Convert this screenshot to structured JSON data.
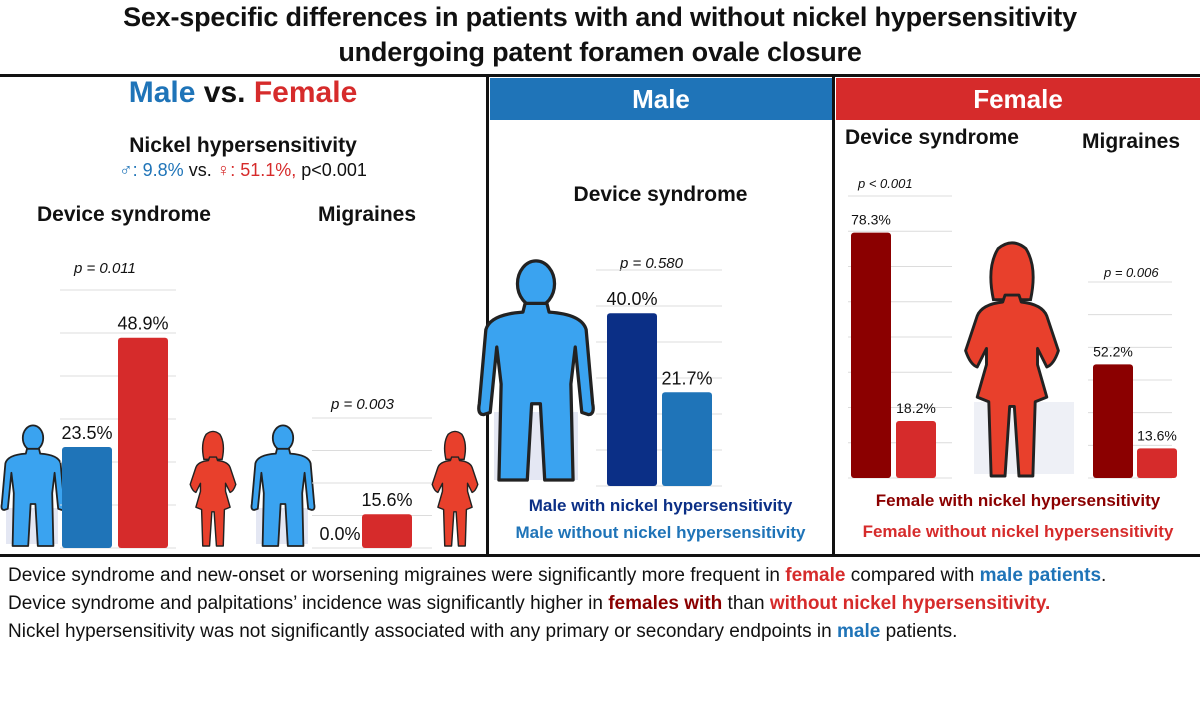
{
  "title": {
    "line1": "Sex-specific differences in patients with and without nickel hypersensitivity",
    "line2": "undergoing patent foramen ovale closure"
  },
  "colors": {
    "male_blue": "#1f74b8",
    "male_dark": "#0b2f86",
    "male_figure": "#3aa3f0",
    "female_red": "#d62b2b",
    "female_dark": "#8b0000",
    "female_figure": "#e8402c"
  },
  "panel1": {
    "heading_male": "Male",
    "heading_vs": "vs.",
    "heading_female": "Female",
    "nickel_title": "Nickel hypersensitivity",
    "male_symbol": "♂",
    "male_stat": ": 9.8%",
    "vs": "vs.",
    "female_symbol": "♀",
    "female_stat": ": 51.1%,",
    "p_overall": "p<0.001",
    "device_label": "Device syndrome",
    "migraines_label": "Migraines",
    "device_p": "p = 0.011",
    "migraines_p": "p = 0.003"
  },
  "panel2": {
    "header": "Male",
    "chart_title": "Device syndrome",
    "p": "p = 0.580",
    "legend_with": "Male with nickel hypersensitivity",
    "legend_without": "Male without nickel hypersensitivity"
  },
  "panel3": {
    "header": "Female",
    "device_label": "Device syndrome",
    "migraines_label": "Migraines",
    "device_p": "p < 0.001",
    "migraines_p": "p = 0.006",
    "legend_with": "Female with nickel hypersensitivity",
    "legend_without": "Female without nickel hypersensitivity"
  },
  "chart_data": [
    {
      "type": "bar",
      "title": "Device syndrome (Male vs. Female)",
      "categories": [
        "Male",
        "Female"
      ],
      "values": [
        23.5,
        48.9
      ],
      "labels": [
        "23.5%",
        "48.9%"
      ],
      "p_value": "p = 0.011",
      "ylim": [
        0,
        60
      ]
    },
    {
      "type": "bar",
      "title": "Migraines (Male vs. Female)",
      "categories": [
        "Male",
        "Female"
      ],
      "values": [
        0.0,
        15.6
      ],
      "labels": [
        "0.0%",
        "15.6%"
      ],
      "p_value": "p = 0.003",
      "ylim": [
        0,
        60
      ]
    },
    {
      "type": "bar",
      "title": "Device syndrome (Male)",
      "categories": [
        "Male with nickel hypersensitivity",
        "Male without nickel hypersensitivity"
      ],
      "values": [
        40.0,
        21.7
      ],
      "labels": [
        "40.0%",
        "21.7%"
      ],
      "p_value": "p = 0.580",
      "ylim": [
        0,
        50
      ]
    },
    {
      "type": "bar",
      "title": "Device syndrome (Female)",
      "categories": [
        "Female with nickel hypersensitivity",
        "Female without nickel hypersensitivity"
      ],
      "values": [
        78.3,
        18.2
      ],
      "labels": [
        "78.3%",
        "18.2%"
      ],
      "p_value": "p < 0.001",
      "ylim": [
        0,
        90
      ]
    },
    {
      "type": "bar",
      "title": "Migraines (Female)",
      "categories": [
        "Female with nickel hypersensitivity",
        "Female without nickel hypersensitivity"
      ],
      "values": [
        52.2,
        13.6
      ],
      "labels": [
        "52.2%",
        "13.6%"
      ],
      "p_value": "p = 0.006",
      "ylim": [
        0,
        90
      ]
    }
  ],
  "bottom": {
    "s1_a": "Device syndrome and new-onset or worsening migraines were significantly more frequent in ",
    "s1_b": "female",
    "s1_c": " compared with ",
    "s1_d": "male patients",
    "s1_e": ".",
    "s2_a": "Device syndrome and palpitations’ incidence was significantly higher in ",
    "s2_b": "females with",
    "s2_c": " than ",
    "s2_d": "without nickel hypersensitivity.",
    "s3_a": "Nickel hypersensitivity was not significantly associated with any primary or secondary endpoints in ",
    "s3_b": "male",
    "s3_c": " patients."
  }
}
